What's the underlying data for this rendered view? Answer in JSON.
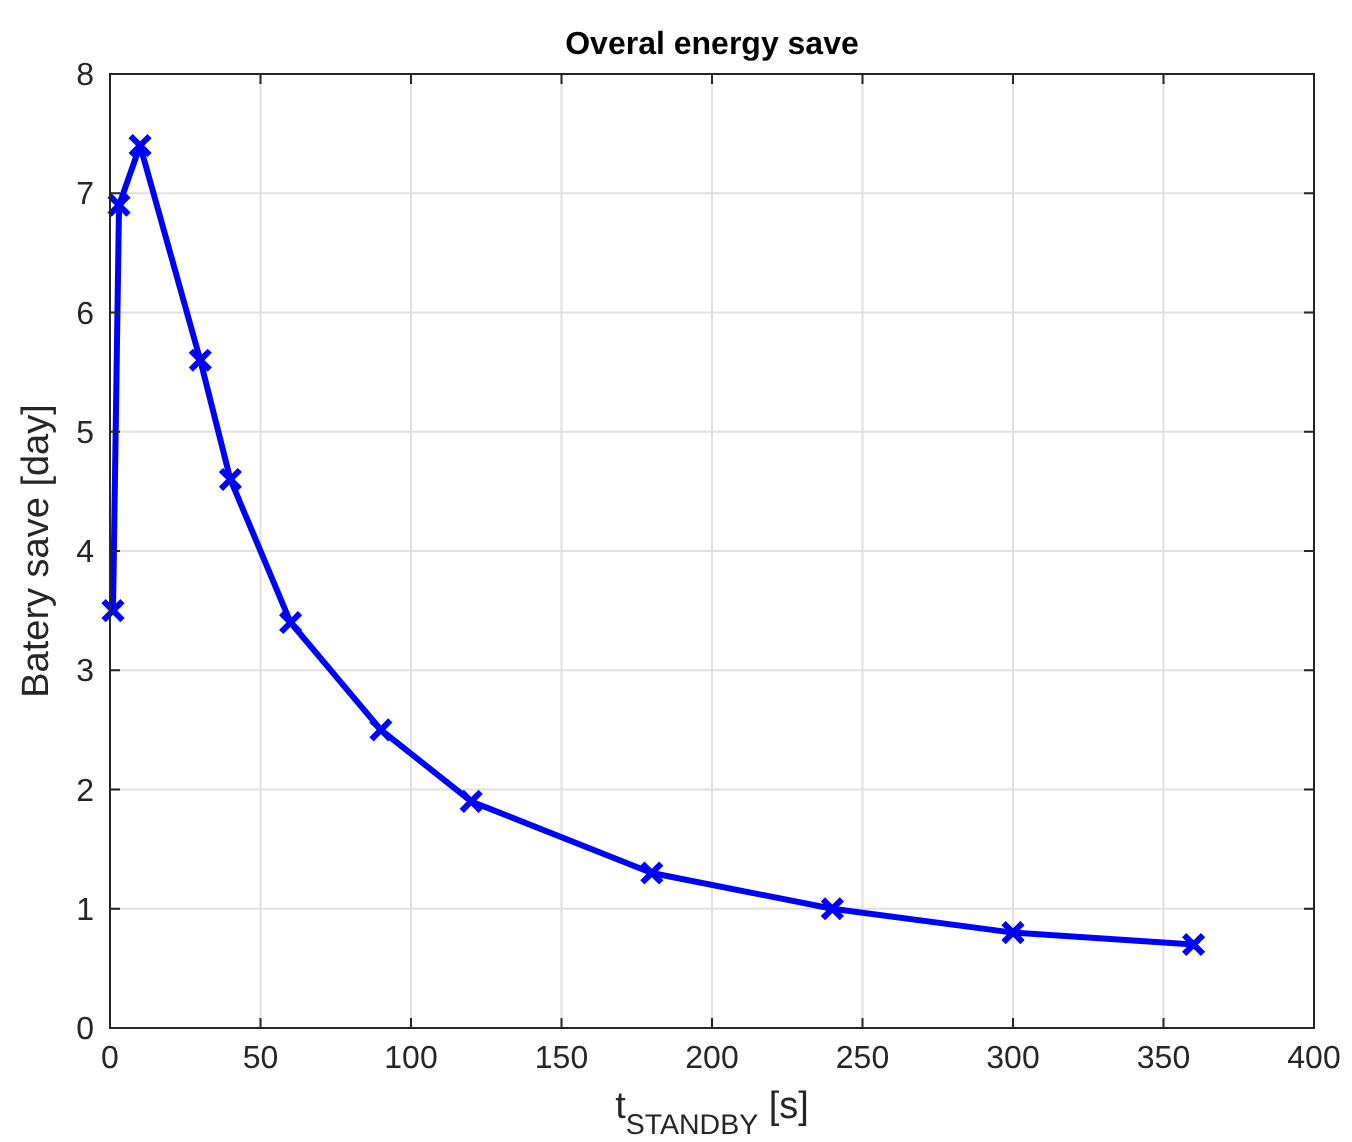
{
  "chart_data": {
    "type": "line",
    "title": "Overal energy save",
    "xlabel": "t$_{STANDBY}$ [s]",
    "ylabel": "Batery save [day]",
    "x": [
      1,
      3,
      10,
      30,
      40,
      60,
      90,
      120,
      180,
      240,
      300,
      360
    ],
    "series": [
      {
        "color": "#0000ff",
        "values": [
          3.5,
          6.9,
          7.4,
          5.6,
          4.6,
          3.4,
          2.5,
          1.9,
          1.3,
          1.0,
          0.8,
          0.7
        ]
      }
    ],
    "xlim": [
      0,
      400
    ],
    "xticks": [
      0,
      50,
      100,
      150,
      200,
      250,
      300,
      350,
      400
    ],
    "ylim": [
      0,
      8
    ],
    "yticks": [
      0,
      1,
      2,
      3,
      4,
      5,
      6,
      7,
      8
    ],
    "grid": true,
    "marker": "cross",
    "line_style": "solid"
  }
}
